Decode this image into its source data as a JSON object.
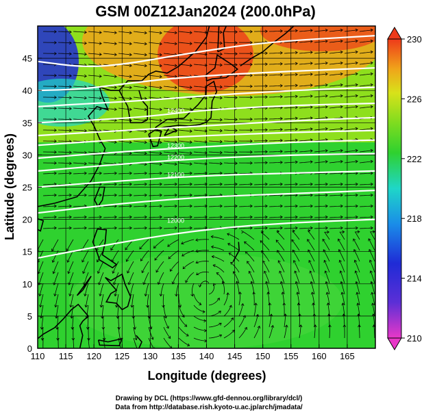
{
  "title": "GSM 00Z12Jan2024 (200.0hPa)",
  "x_axis": {
    "label": "Longitude (degrees)",
    "min": 110,
    "max": 170,
    "ticks": [
      "110",
      "115",
      "120",
      "125",
      "130",
      "135",
      "140",
      "145",
      "150",
      "155",
      "160",
      "165"
    ]
  },
  "y_axis": {
    "label": "Latitude  (degrees)",
    "min": 0,
    "max": 50,
    "ticks": [
      "0",
      "5",
      "10",
      "15",
      "20",
      "25",
      "30",
      "35",
      "40",
      "45"
    ]
  },
  "colorbar": {
    "min": 210,
    "max": 230,
    "ticks": [
      "210",
      "214",
      "218",
      "222",
      "226",
      "230"
    ]
  },
  "contour_labels": [
    "12000",
    "12100",
    "12200",
    "12300",
    "12400"
  ],
  "credits": {
    "line1": "Drawing by DCL (https://www.gfd-dennou.org/library/dcl/)",
    "line2": "Data from http://database.rish.kyoto-u.ac.jp/arch/jmadata/"
  },
  "colors": {
    "temp_low": "#1f2bd6",
    "temp_mid": "#2fd12f",
    "temp_high": "#ee3a1a",
    "contours": "#ffffff",
    "streamlines": "#000000"
  }
}
